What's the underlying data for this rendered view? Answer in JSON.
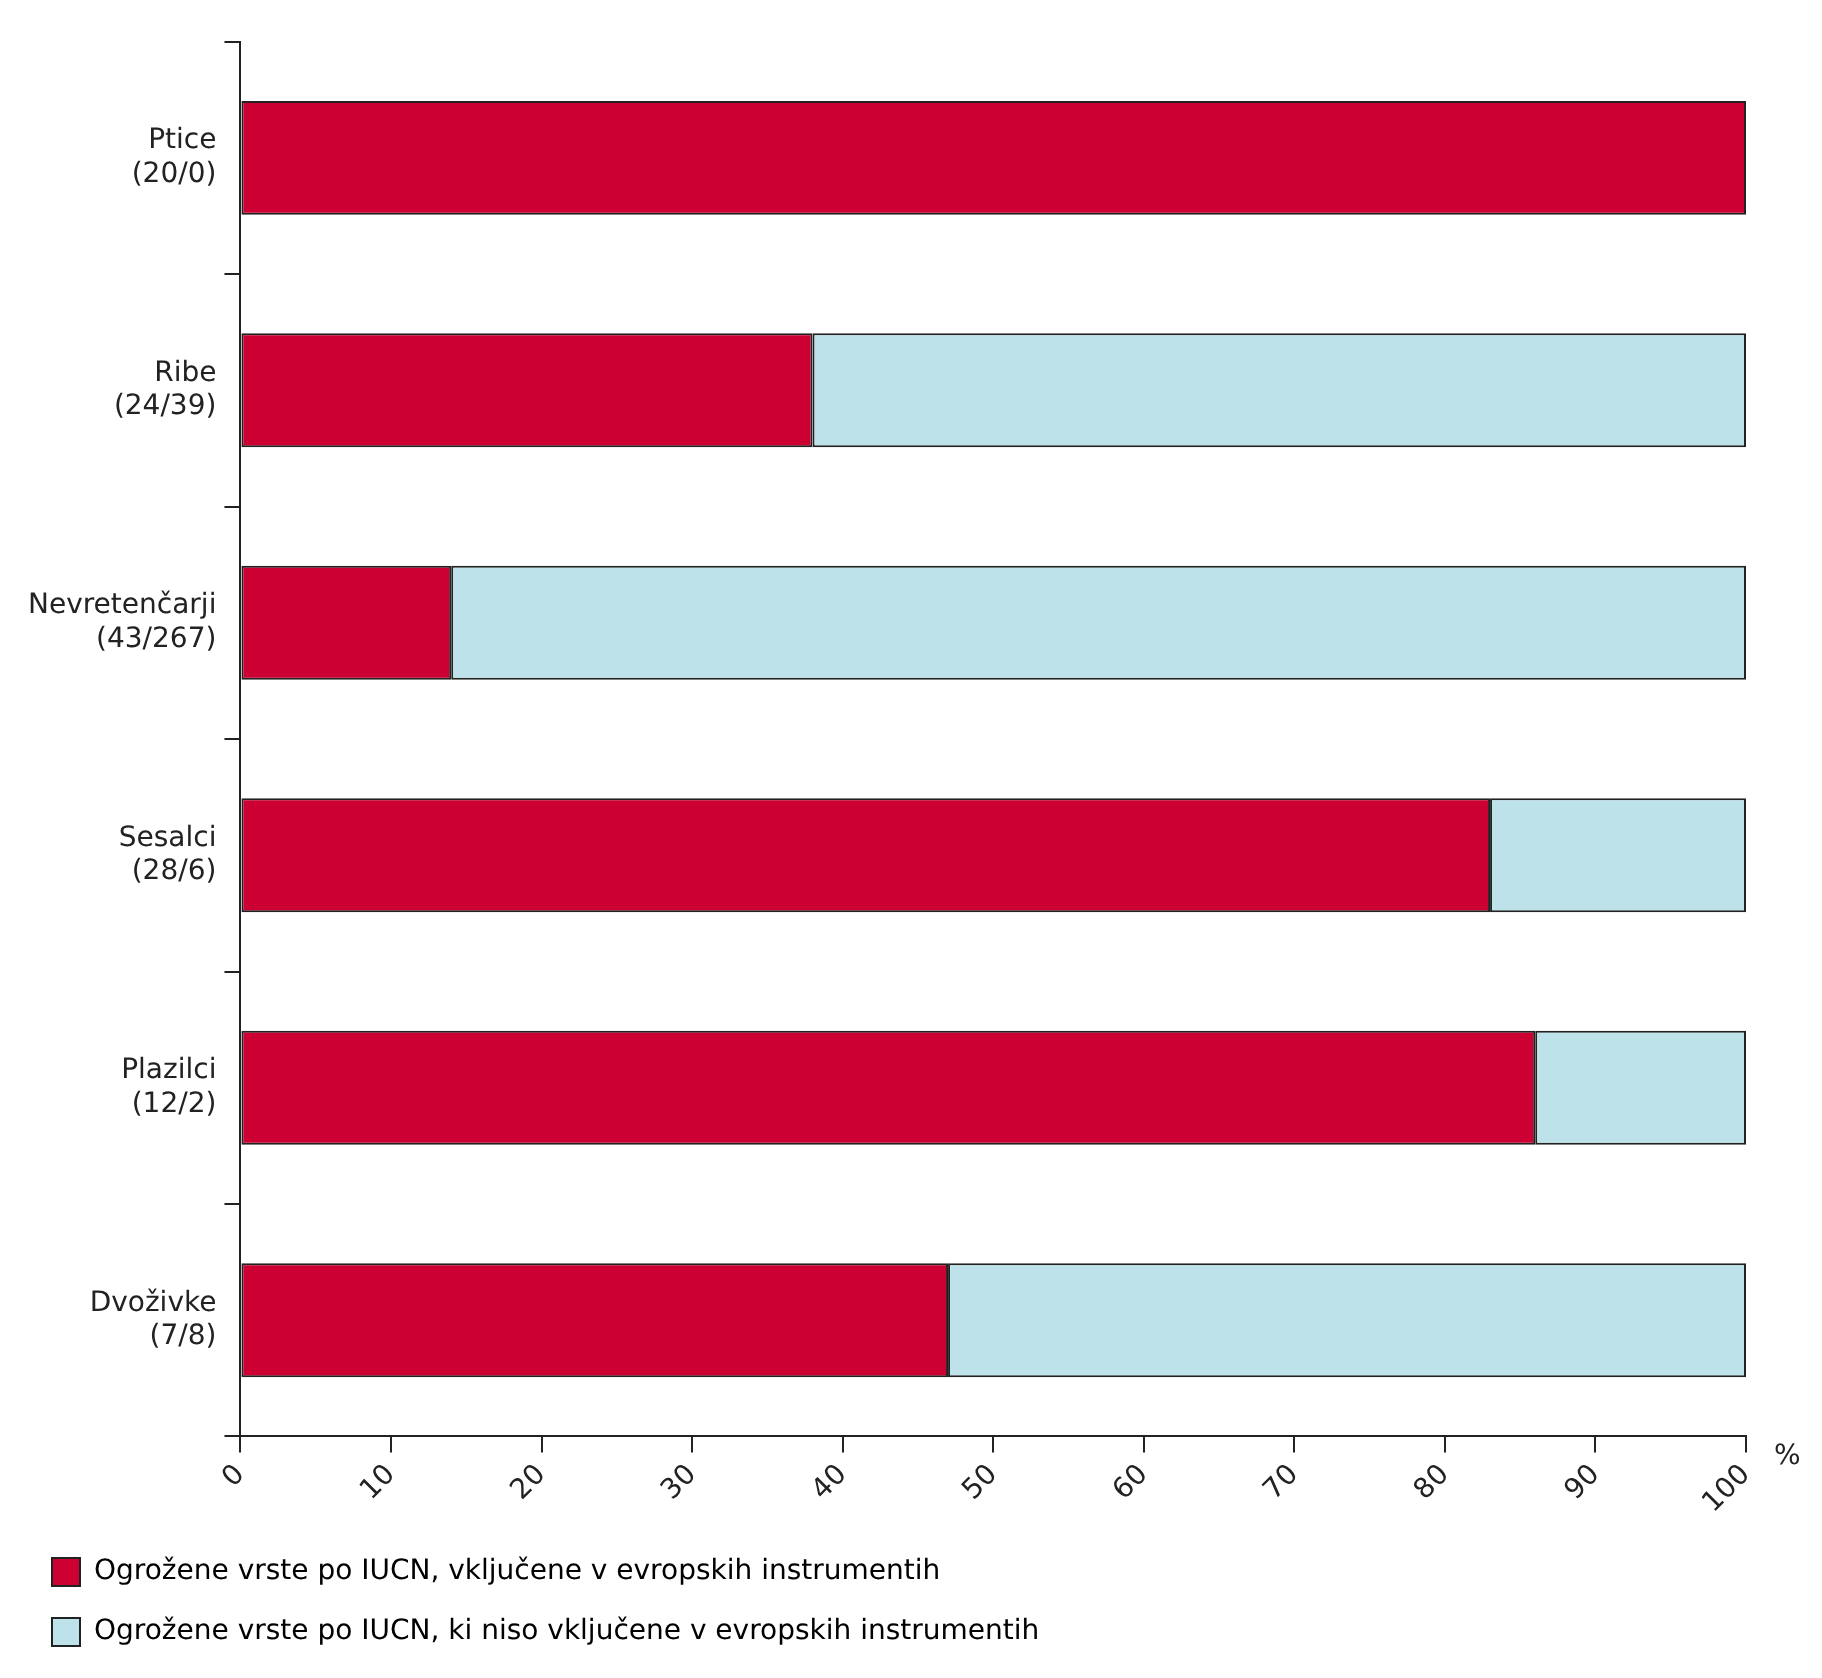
{
  "chart_data": {
    "type": "bar",
    "orientation": "horizontal",
    "stacked": true,
    "xlabel": "%",
    "categories": [
      "Ptice\n(20/0)",
      "Ribe\n(24/39)",
      "Nevretenčarji\n(43/267)",
      "Sesalci\n(28/6)",
      "Plazilci\n(12/2)",
      "Dvoživke\n(7/8)"
    ],
    "series": [
      {
        "name": "Ogrožene vrste po IUCN, vključene v evropskih instrumentih",
        "color": "#cc0033",
        "values": [
          100,
          38,
          14,
          83,
          86,
          47
        ]
      },
      {
        "name": "Ogrožene vrste po IUCN, ki niso vključene v evropskih instrumentih",
        "color": "#bee2e9",
        "values": [
          0,
          62,
          86,
          17,
          14,
          53
        ]
      }
    ],
    "xlim": [
      0,
      100
    ],
    "xticks": [
      0,
      10,
      20,
      30,
      40,
      50,
      60,
      70,
      80,
      90,
      100
    ],
    "grid": false,
    "legend": "bottom"
  }
}
